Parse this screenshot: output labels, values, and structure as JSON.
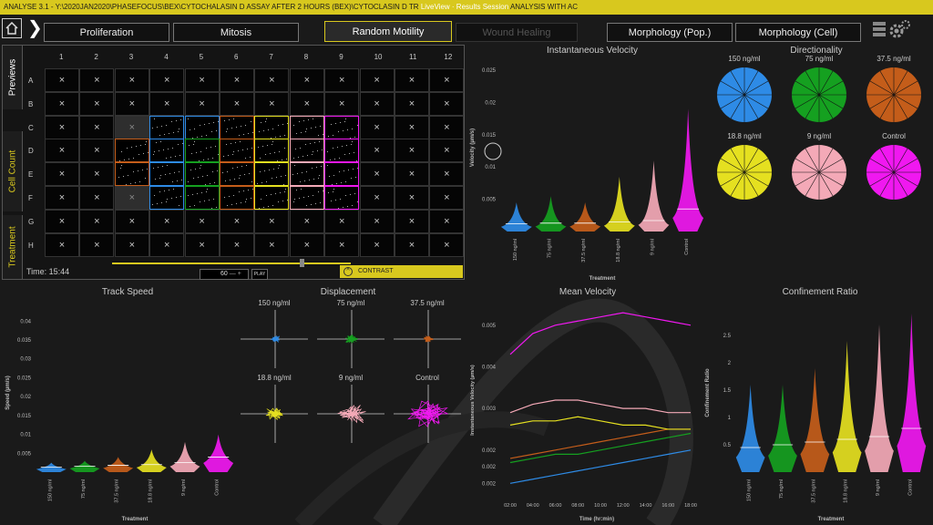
{
  "window": {
    "title_left": "ANALYSE 3.1 - Y:\\2020JAN2020\\PHASEFOCUS\\BEX\\CYTOCHALASIN D ASSAY AFTER 2 HOURS (BEX)\\CYTOCLASIN D TR",
    "title_mid": "LiveView · Results Session",
    "title_right": "ANALYSIS WITH AC"
  },
  "tabs": [
    {
      "label": "Proliferation"
    },
    {
      "label": "Mitosis"
    },
    {
      "label": "Random Motility"
    },
    {
      "label": "Wound Healing"
    },
    {
      "label": "Morphology (Pop.)"
    },
    {
      "label": "Morphology (Cell)"
    }
  ],
  "plate": {
    "side_tabs": [
      "Previews",
      "Cell Count",
      "Treatment"
    ],
    "columns": [
      "1",
      "2",
      "3",
      "4",
      "5",
      "6",
      "7",
      "8",
      "9",
      "10",
      "11",
      "12"
    ],
    "rows": [
      "A",
      "B",
      "C",
      "D",
      "E",
      "F",
      "G",
      "H"
    ],
    "empty_mark": "×",
    "time_label": "Time: 15:44",
    "speed_value": "60",
    "play_label": "PLAY",
    "contrast_label": "CONTRAST"
  },
  "colors": {
    "accent": "#d8c81e",
    "c150": "#2e8be6",
    "c75": "#15a020",
    "c37": "#c45d1a",
    "c18": "#e5e020",
    "c9": "#f4a9b7",
    "control": "#f018f0"
  },
  "treatments": [
    "150 ng/ml",
    "75 ng/ml",
    "37.5 ng/ml",
    "18.8 ng/ml",
    "9 ng/ml",
    "Control"
  ],
  "charts": {
    "inst_velocity": {
      "title": "Instantaneous Velocity",
      "ylabel": "Velocity (µm/s)",
      "xlabel": "Treatment",
      "yticks": [
        "0.025",
        "0.02",
        "0.015",
        "0.01",
        "0.005"
      ]
    },
    "directionality": {
      "title": "Directionality",
      "labels": [
        "150 ng/ml",
        "75 ng/ml",
        "37.5 ng/ml",
        "18.8 ng/ml",
        "9 ng/ml",
        "Control"
      ]
    },
    "track_speed": {
      "title": "Track Speed",
      "ylabel": "Speed (µm/s)",
      "xlabel": "Treatment",
      "yticks": [
        "0.04",
        "0.035",
        "0.03",
        "0.025",
        "0.02",
        "0.015",
        "0.01",
        "0.005"
      ]
    },
    "displacement": {
      "title": "Displacement",
      "labels": [
        "150 ng/ml",
        "75 ng/ml",
        "37.5 ng/ml",
        "18.8 ng/ml",
        "9 ng/ml",
        "Control"
      ]
    },
    "mean_velocity": {
      "title": "Mean Velocity",
      "ylabel": "Instantaneous Velocity (µm/s)",
      "xlabel": "Time (hr:min)",
      "yticks": [
        "0.005",
        "0.004",
        "0.003",
        "0.002",
        "0.002",
        "0.002"
      ],
      "xticks": [
        "02:00",
        "04:00",
        "06:00",
        "08:00",
        "10:00",
        "12:00",
        "14:00",
        "16:00",
        "18:00"
      ]
    },
    "confinement": {
      "title": "Confinement Ratio",
      "ylabel": "Confinement Ratio",
      "xlabel": "Treatment",
      "yticks": [
        "2.5",
        "2",
        "1.5",
        "1",
        "0.5"
      ]
    }
  },
  "chart_data": [
    {
      "type": "violin",
      "title": "Instantaneous Velocity",
      "categories": [
        "150 ng/ml",
        "75 ng/ml",
        "37.5 ng/ml",
        "18.8 ng/ml",
        "9 ng/ml",
        "Control"
      ],
      "median": [
        0.0012,
        0.0013,
        0.0013,
        0.0015,
        0.0017,
        0.0035
      ],
      "max": [
        0.0045,
        0.0055,
        0.0045,
        0.0085,
        0.011,
        0.019
      ],
      "ylim": [
        0,
        0.026
      ]
    },
    {
      "type": "violin",
      "title": "Track Speed",
      "categories": [
        "150 ng/ml",
        "75 ng/ml",
        "37.5 ng/ml",
        "18.8 ng/ml",
        "9 ng/ml",
        "Control"
      ],
      "median": [
        0.0013,
        0.0016,
        0.0018,
        0.002,
        0.0025,
        0.004
      ],
      "max": [
        0.0025,
        0.003,
        0.004,
        0.006,
        0.008,
        0.01
      ],
      "ylim": [
        0,
        0.042
      ]
    },
    {
      "type": "line",
      "title": "Mean Velocity",
      "x": [
        "02:00",
        "04:00",
        "06:00",
        "08:00",
        "10:00",
        "12:00",
        "14:00",
        "16:00",
        "18:00"
      ],
      "series": [
        {
          "values": [
            0.0012,
            0.0013,
            0.0014,
            0.0015,
            0.0016,
            0.0017,
            0.0018,
            0.0019,
            0.002
          ]
        },
        {
          "values": [
            0.0017,
            0.0018,
            0.0019,
            0.0019,
            0.002,
            0.0021,
            0.0022,
            0.0023,
            0.0024
          ]
        },
        {
          "values": [
            0.0018,
            0.0019,
            0.002,
            0.0021,
            0.0022,
            0.0023,
            0.0024,
            0.0025,
            0.0025
          ]
        },
        {
          "values": [
            0.0026,
            0.0027,
            0.0027,
            0.0028,
            0.0027,
            0.0026,
            0.0026,
            0.0025,
            0.0025
          ]
        },
        {
          "values": [
            0.0029,
            0.0031,
            0.0032,
            0.0032,
            0.0031,
            0.003,
            0.003,
            0.0029,
            0.0029
          ]
        },
        {
          "values": [
            0.0043,
            0.0048,
            0.005,
            0.0051,
            0.0052,
            0.0053,
            0.0052,
            0.0051,
            0.005
          ]
        }
      ]
    },
    {
      "type": "violin",
      "title": "Confinement Ratio",
      "categories": [
        "150 ng/ml",
        "75 ng/ml",
        "37.5 ng/ml",
        "18.8 ng/ml",
        "9 ng/ml",
        "Control"
      ],
      "median": [
        0.45,
        0.5,
        0.55,
        0.6,
        0.65,
        0.8
      ],
      "max": [
        1.6,
        1.6,
        1.9,
        2.4,
        2.7,
        2.9
      ],
      "ylim": [
        0,
        2.9
      ]
    }
  ]
}
